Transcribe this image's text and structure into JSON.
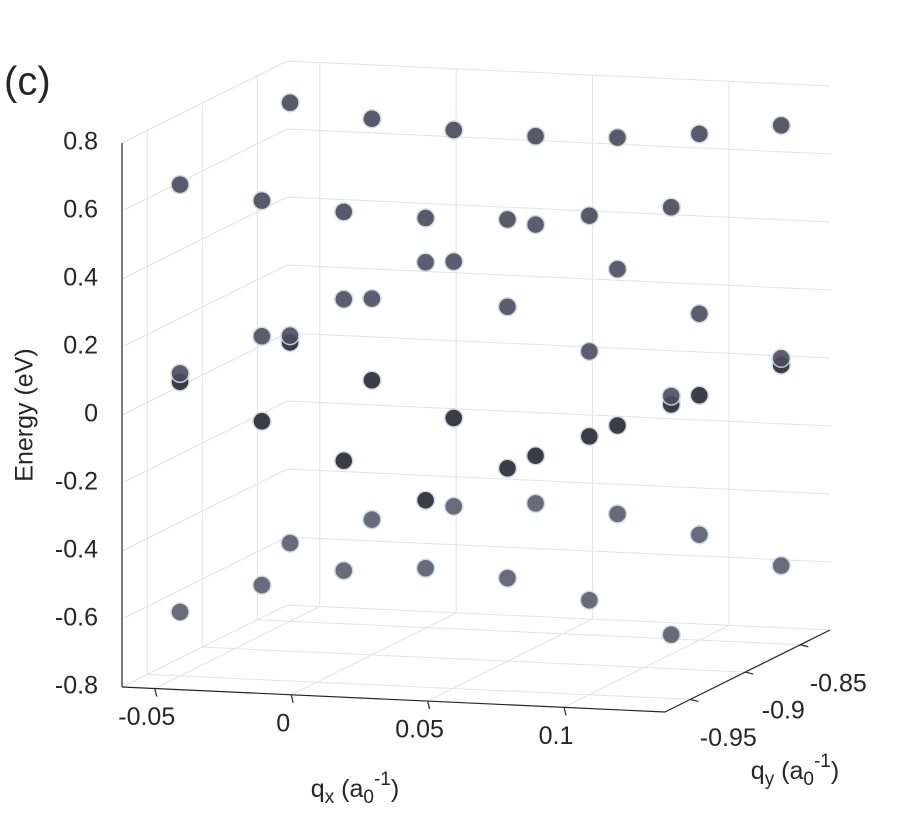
{
  "chart_data": {
    "type": "scatter3d",
    "panel_label": "(c)",
    "xlabel": [
      "q",
      "x",
      " (a",
      "0",
      "-1",
      ")"
    ],
    "ylabel": [
      "q",
      "y",
      " (a",
      "0",
      "-1",
      ")"
    ],
    "zlabel": "Energy  (eV)",
    "xlim": [
      -0.062,
      0.137
    ],
    "ylim": [
      -0.973,
      -0.823
    ],
    "zlim": [
      -0.8,
      0.8
    ],
    "xticks": [
      -0.05,
      0,
      0.05,
      0.1
    ],
    "yticks": [
      -0.95,
      -0.9,
      -0.85
    ],
    "zticks": [
      -0.8,
      -0.6,
      -0.4,
      -0.2,
      0,
      0.2,
      0.4,
      0.6,
      0.8
    ],
    "grid": true,
    "series": [
      {
        "color": "#5c5a6e",
        "x": [
          -0.05,
          -0.02,
          0.01,
          0.04,
          0.07,
          0.1,
          0.13,
          -0.05,
          -0.02,
          0.01,
          0.04,
          0.07,
          0.1,
          0.13
        ],
        "y": [
          -0.95,
          -0.95,
          -0.95,
          -0.95,
          -0.95,
          -0.95,
          -0.95,
          -0.85,
          -0.85,
          -0.85,
          -0.85,
          -0.85,
          -0.85,
          -0.85
        ],
        "values": [
          -0.612,
          -0.522,
          -0.468,
          -0.45,
          -0.468,
          -0.522,
          -0.612,
          -0.57,
          -0.49,
          -0.44,
          -0.42,
          -0.44,
          -0.49,
          -0.57
        ]
      },
      {
        "color": "#2a2636",
        "x": [
          -0.05,
          -0.02,
          0.01,
          0.04,
          0.07,
          0.1,
          0.13,
          -0.05,
          -0.02,
          0.01,
          0.04,
          0.07,
          0.1,
          0.13
        ],
        "y": [
          -0.95,
          -0.95,
          -0.95,
          -0.95,
          -0.95,
          -0.95,
          -0.95,
          -0.85,
          -0.85,
          -0.85,
          -0.85,
          -0.85,
          -0.85,
          -0.85
        ],
        "values": [
          0.065,
          -0.04,
          -0.145,
          -0.25,
          -0.145,
          -0.04,
          0.065,
          0.02,
          -0.08,
          -0.18,
          -0.28,
          -0.18,
          -0.08,
          0.02
        ]
      },
      {
        "color": "#4e4b62",
        "x": [
          -0.05,
          -0.02,
          0.01,
          0.04,
          0.07,
          0.1,
          0.13,
          -0.05,
          -0.02,
          0.01,
          0.04,
          0.07,
          0.1,
          0.13
        ],
        "y": [
          -0.95,
          -0.95,
          -0.95,
          -0.95,
          -0.95,
          -0.95,
          -0.95,
          -0.85,
          -0.85,
          -0.85,
          -0.85,
          -0.85,
          -0.85,
          -0.85
        ],
        "values": [
          0.09,
          0.21,
          0.33,
          0.45,
          0.33,
          0.21,
          0.09,
          0.04,
          0.16,
          0.28,
          0.4,
          0.28,
          0.16,
          0.04
        ]
      },
      {
        "color": "#4a475c",
        "x": [
          -0.05,
          -0.02,
          0.01,
          0.04,
          0.07,
          0.1,
          0.13,
          -0.05,
          -0.02,
          0.01,
          0.04,
          0.07,
          0.1,
          0.13
        ],
        "y": [
          -0.95,
          -0.95,
          -0.95,
          -0.95,
          -0.95,
          -0.95,
          -0.95,
          -0.85,
          -0.85,
          -0.85,
          -0.85,
          -0.85,
          -0.85,
          -0.85
        ],
        "values": [
          0.645,
          0.609,
          0.587,
          0.58,
          0.587,
          0.609,
          0.645,
          0.725,
          0.689,
          0.667,
          0.66,
          0.667,
          0.689,
          0.725
        ]
      }
    ]
  }
}
